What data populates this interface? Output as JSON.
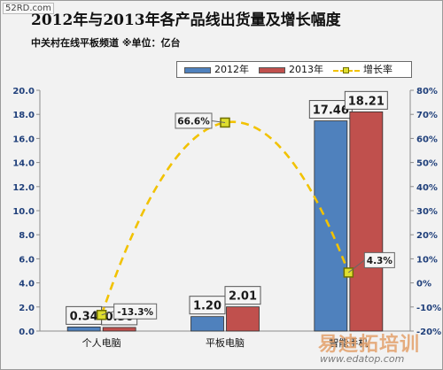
{
  "watermark_top": "52RD.com",
  "watermark_bottom": {
    "text": "易迪拓培训",
    "url": "www.edatop.com"
  },
  "chart_data": {
    "type": "bar",
    "title": "2012年与2013年各产品线出货量及增长幅度",
    "subtitle": "中关村在线平板频道 ※单位：亿台",
    "categories": [
      "个人电脑",
      "平板电脑",
      "智能手机"
    ],
    "series": [
      {
        "name": "2012年",
        "type": "bar",
        "values": [
          0.34,
          1.2,
          17.46
        ],
        "labels": [
          "0.34",
          "1.20",
          "17.46"
        ],
        "color": "#4f81bd"
      },
      {
        "name": "2013年",
        "type": "bar",
        "values": [
          0.3,
          2.01,
          18.21
        ],
        "labels": [
          "0.30",
          "2.01",
          "18.21"
        ],
        "color": "#c0504d"
      },
      {
        "name": "增长率",
        "type": "line",
        "axis": "right",
        "values": [
          -13.3,
          66.6,
          4.3
        ],
        "labels": [
          "-13.3%",
          "66.6%",
          "4.3%"
        ],
        "color": "#f2c200"
      }
    ],
    "y_left": {
      "min": 0,
      "max": 20,
      "ticks": [
        "0.0",
        "2.0",
        "4.0",
        "6.0",
        "8.0",
        "10.0",
        "12.0",
        "14.0",
        "16.0",
        "18.0",
        "20.0"
      ]
    },
    "y_right": {
      "min": -20,
      "max": 80,
      "ticks": [
        "-20%",
        "-10%",
        "0%",
        "10%",
        "20%",
        "30%",
        "40%",
        "50%",
        "60%",
        "70%",
        "80%"
      ]
    },
    "legend_position": "top-right",
    "grid": false
  }
}
